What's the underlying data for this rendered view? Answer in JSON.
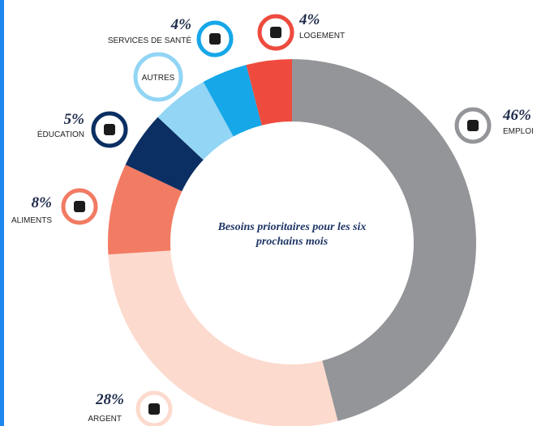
{
  "chart_data": {
    "type": "donut",
    "title": "Besoins prioritaires pour les six prochains mois",
    "categories": [
      "EMPLOI",
      "ARGENT",
      "ALIMENTS",
      "ÉDUCATION",
      "AUTRES",
      "SERVICES DE SANTÉ",
      "LOGEMENT"
    ],
    "values": [
      46,
      28,
      8,
      5,
      5,
      4,
      4
    ],
    "value_labels": [
      "46%",
      "28%",
      "8%",
      "5%",
      null,
      "4%",
      "4%"
    ],
    "colors": [
      "#939598",
      "#fcdacd",
      "#f27b64",
      "#0b2f62",
      "#92d5f5",
      "#15a7e8",
      "#ee4b3e"
    ]
  }
}
